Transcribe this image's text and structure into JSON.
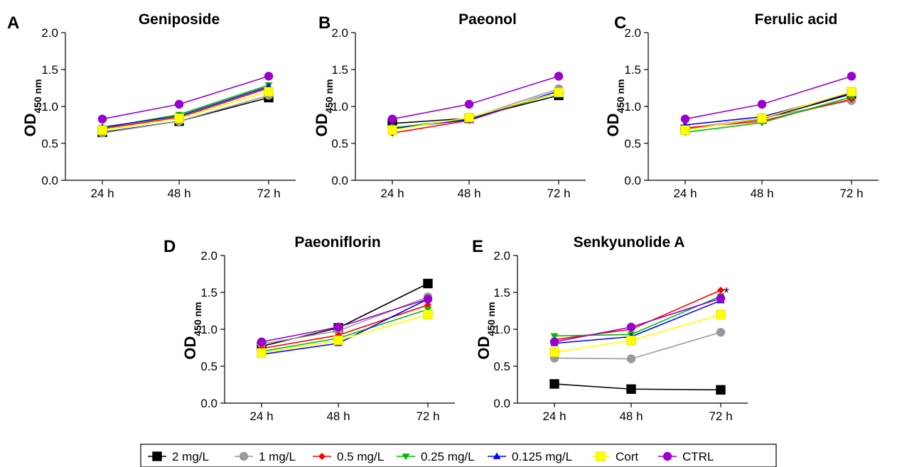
{
  "chart_data": [
    {
      "type": "line",
      "panel_letter": "A",
      "title": "Geniposide",
      "ylabel_main": "OD",
      "ylabel_sub": "450 nm",
      "x": [
        "24 h",
        "48 h",
        "72 h"
      ],
      "ylim": [
        0,
        2.0
      ],
      "yticks": [
        "0.0",
        "0.5",
        "1.0",
        "1.5",
        "2.0"
      ],
      "series": [
        {
          "name": "2 mg/L",
          "values": [
            0.65,
            0.8,
            1.12
          ]
        },
        {
          "name": "1 mg/L",
          "values": [
            0.64,
            0.8,
            1.15
          ]
        },
        {
          "name": "0.5 mg/L",
          "values": [
            0.7,
            0.85,
            1.25
          ]
        },
        {
          "name": "0.25 mg/L",
          "values": [
            0.71,
            0.89,
            1.29
          ]
        },
        {
          "name": "0.125 mg/L",
          "values": [
            0.72,
            0.87,
            1.27
          ]
        },
        {
          "name": "Cort",
          "values": [
            0.68,
            0.84,
            1.2
          ]
        },
        {
          "name": "CTRL",
          "values": [
            0.83,
            1.03,
            1.41
          ]
        }
      ],
      "annotation": ""
    },
    {
      "type": "line",
      "panel_letter": "B",
      "title": "Paeonol",
      "ylabel_main": "OD",
      "ylabel_sub": "450 nm",
      "x": [
        "24 h",
        "48 h",
        "72 h"
      ],
      "ylim": [
        0,
        2.0
      ],
      "yticks": [
        "0.0",
        "0.5",
        "1.0",
        "1.5",
        "2.0"
      ],
      "series": [
        {
          "name": "2 mg/L",
          "values": [
            0.77,
            0.84,
            1.15
          ]
        },
        {
          "name": "1 mg/L",
          "values": [
            0.7,
            0.84,
            1.24
          ]
        },
        {
          "name": "0.5 mg/L",
          "values": [
            0.64,
            0.81,
            1.2
          ]
        },
        {
          "name": "0.25 mg/L",
          "values": [
            0.71,
            0.83,
            1.19
          ]
        },
        {
          "name": "0.125 mg/L",
          "values": [
            0.7,
            0.82,
            1.21
          ]
        },
        {
          "name": "Cort",
          "values": [
            0.68,
            0.85,
            1.19
          ]
        },
        {
          "name": "CTRL",
          "values": [
            0.83,
            1.03,
            1.41
          ]
        }
      ],
      "annotation": ""
    },
    {
      "type": "line",
      "panel_letter": "C",
      "title": "Ferulic acid",
      "ylabel_main": "OD",
      "ylabel_sub": "450 nm",
      "x": [
        "24 h",
        "48 h",
        "72 h"
      ],
      "ylim": [
        0,
        2.0
      ],
      "yticks": [
        "0.0",
        "0.5",
        "1.0",
        "1.5",
        "2.0"
      ],
      "series": [
        {
          "name": "2 mg/L",
          "values": [
            0.69,
            0.83,
            1.17
          ]
        },
        {
          "name": "1 mg/L",
          "values": [
            0.7,
            0.84,
            1.08
          ]
        },
        {
          "name": "0.5 mg/L",
          "values": [
            0.71,
            0.8,
            1.1
          ]
        },
        {
          "name": "0.25 mg/L",
          "values": [
            0.65,
            0.78,
            1.13
          ]
        },
        {
          "name": "0.125 mg/L",
          "values": [
            0.75,
            0.86,
            1.18
          ]
        },
        {
          "name": "Cort",
          "values": [
            0.68,
            0.84,
            1.2
          ]
        },
        {
          "name": "CTRL",
          "values": [
            0.83,
            1.03,
            1.41
          ]
        }
      ],
      "annotation": ""
    },
    {
      "type": "line",
      "panel_letter": "D",
      "title": "Paeoniflorin",
      "ylabel_main": "OD",
      "ylabel_sub": "450 nm",
      "x": [
        "24 h",
        "48 h",
        "72 h"
      ],
      "ylim": [
        0,
        2.0
      ],
      "yticks": [
        "0.0",
        "0.5",
        "1.0",
        "1.5",
        "2.0"
      ],
      "series": [
        {
          "name": "2 mg/L",
          "values": [
            0.77,
            1.02,
            1.62
          ]
        },
        {
          "name": "1 mg/L",
          "values": [
            0.8,
            0.98,
            1.44
          ]
        },
        {
          "name": "0.5 mg/L",
          "values": [
            0.74,
            0.92,
            1.33
          ]
        },
        {
          "name": "0.25 mg/L",
          "values": [
            0.7,
            0.88,
            1.27
          ]
        },
        {
          "name": "0.125 mg/L",
          "values": [
            0.66,
            0.81,
            1.41
          ]
        },
        {
          "name": "Cort",
          "values": [
            0.68,
            0.85,
            1.2
          ]
        },
        {
          "name": "CTRL",
          "values": [
            0.83,
            1.03,
            1.41
          ]
        }
      ],
      "annotation": ""
    },
    {
      "type": "line",
      "panel_letter": "E",
      "title": "Senkyunolide A",
      "ylabel_main": "OD",
      "ylabel_sub": "450 nm",
      "x": [
        "24 h",
        "48 h",
        "72 h"
      ],
      "ylim": [
        0,
        2.0
      ],
      "yticks": [
        "0.0",
        "0.5",
        "1.0",
        "1.5",
        "2.0"
      ],
      "series": [
        {
          "name": "2 mg/L",
          "values": [
            0.26,
            0.19,
            0.18
          ]
        },
        {
          "name": "1 mg/L",
          "values": [
            0.61,
            0.6,
            0.96
          ]
        },
        {
          "name": "0.5 mg/L",
          "values": [
            0.86,
            1.0,
            1.53
          ]
        },
        {
          "name": "0.25 mg/L",
          "values": [
            0.91,
            0.93,
            1.45
          ]
        },
        {
          "name": "0.125 mg/L",
          "values": [
            0.81,
            0.9,
            1.39
          ]
        },
        {
          "name": "Cort",
          "values": [
            0.69,
            0.85,
            1.2
          ]
        },
        {
          "name": "CTRL",
          "values": [
            0.83,
            1.03,
            1.42
          ]
        }
      ],
      "annotation": "*"
    }
  ],
  "series_styles": [
    {
      "name": "2 mg/L",
      "color": "#000000",
      "marker": "square"
    },
    {
      "name": "1 mg/L",
      "color": "#999999",
      "marker": "circle"
    },
    {
      "name": "0.5 mg/L",
      "color": "#ff0000",
      "marker": "diamond"
    },
    {
      "name": "0.25 mg/L",
      "color": "#00bb00",
      "marker": "triangle-down"
    },
    {
      "name": "0.125 mg/L",
      "color": "#0000ff",
      "marker": "triangle-up"
    },
    {
      "name": "Cort",
      "color": "#ffff00",
      "marker": "square"
    },
    {
      "name": "CTRL",
      "color": "#9900cc",
      "marker": "circle"
    }
  ],
  "legend": {
    "position": "bottom-center",
    "items": [
      "2 mg/L",
      "1 mg/L",
      "0.5 mg/L",
      "0.25 mg/L",
      "0.125 mg/L",
      "Cort",
      "CTRL"
    ]
  }
}
